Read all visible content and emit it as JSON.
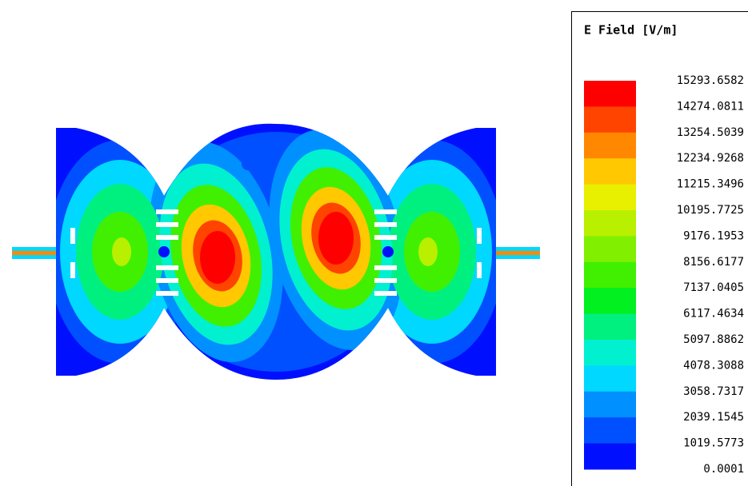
{
  "legend": {
    "title": "E Field [V/m]",
    "labels": [
      "15293.6582",
      "14274.0811",
      "13254.5039",
      "12234.9268",
      "11215.3496",
      "10195.7725",
      "9176.1953",
      "8156.6177",
      "7137.0405",
      "6117.4634",
      "5097.8862",
      "4078.3088",
      "3058.7317",
      "2039.1545",
      "1019.5773",
      "0.0001"
    ],
    "colors": [
      "#ff0000",
      "#ff4400",
      "#ff8800",
      "#ffc800",
      "#e8f000",
      "#b8f000",
      "#80f000",
      "#40f000",
      "#00f020",
      "#00f080",
      "#00f0d0",
      "#00d8ff",
      "#0090ff",
      "#0050ff",
      "#0010ff"
    ]
  }
}
